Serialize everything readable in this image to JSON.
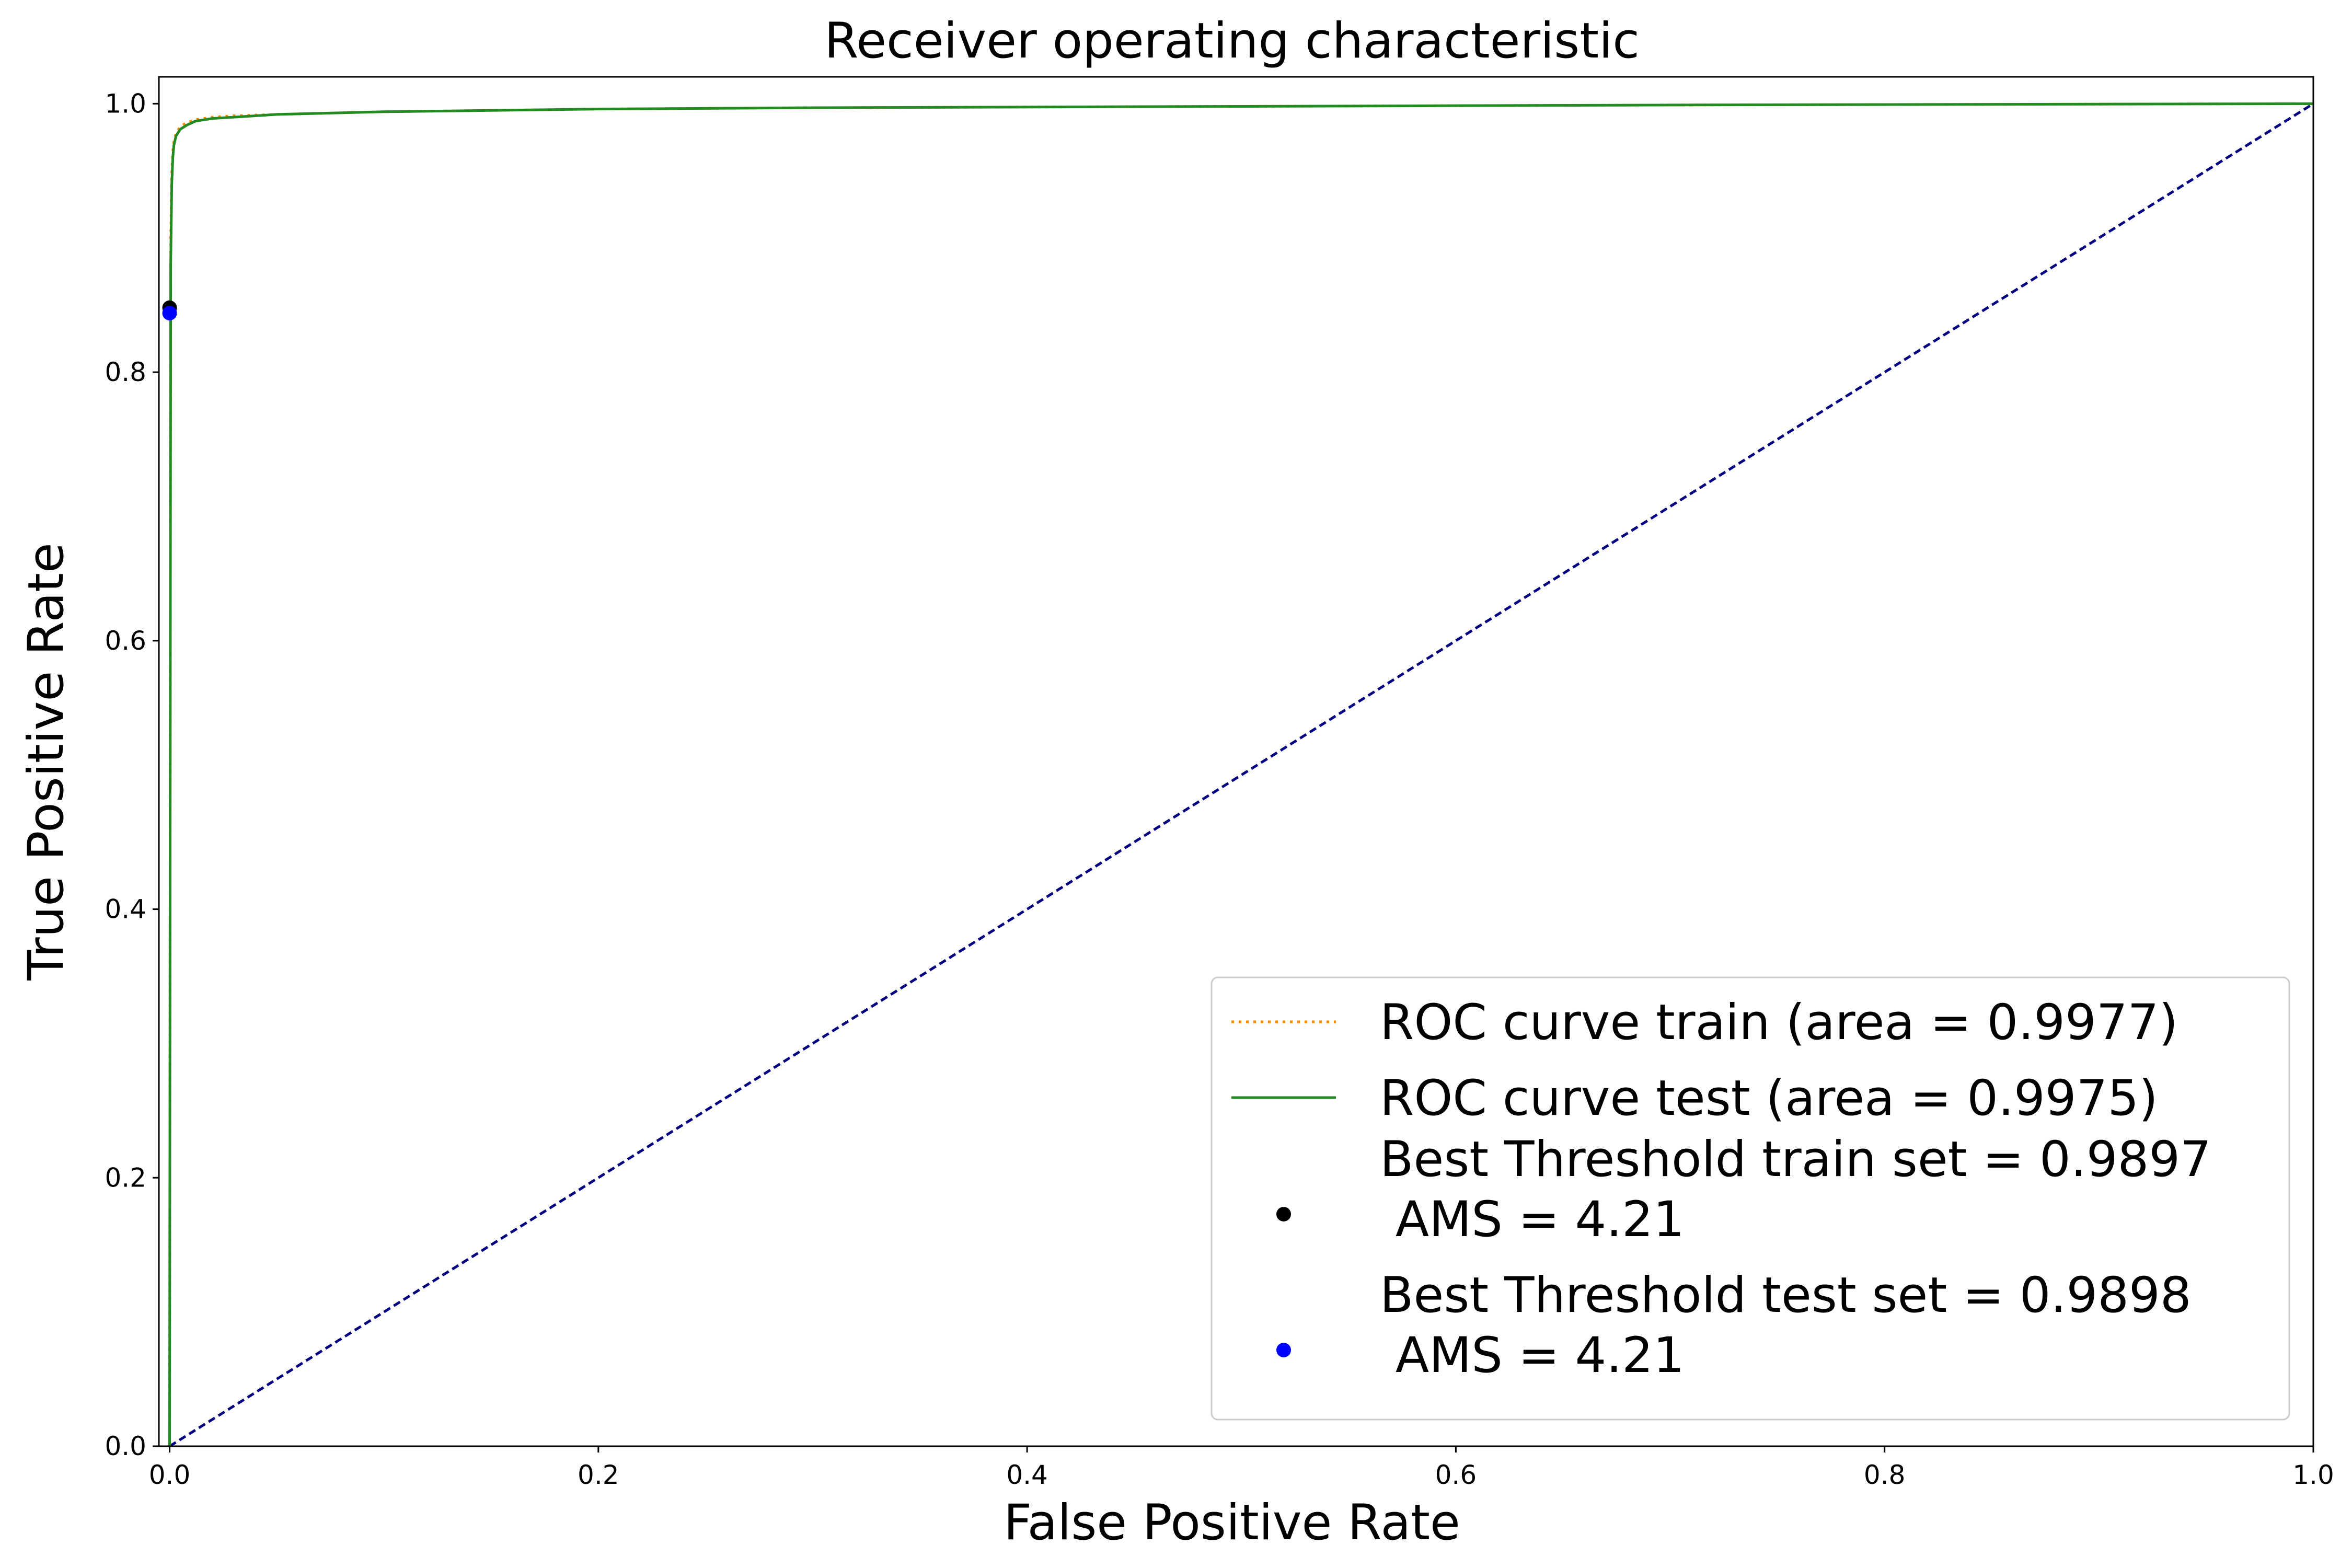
{
  "chart_data": {
    "type": "line",
    "title": "Receiver operating characteristic",
    "xlabel": "False Positive Rate",
    "ylabel": "True Positive Rate",
    "xlim": [
      -0.005,
      1.0
    ],
    "ylim": [
      0.0,
      1.02
    ],
    "xticks": [
      "0.0",
      "0.2",
      "0.4",
      "0.6",
      "0.8",
      "1.0"
    ],
    "yticks": [
      "0.0",
      "0.2",
      "0.4",
      "0.6",
      "0.8",
      "1.0"
    ],
    "xtick_values": [
      0.0,
      0.2,
      0.4,
      0.6,
      0.8,
      1.0
    ],
    "ytick_values": [
      0.0,
      0.2,
      0.4,
      0.6,
      0.8,
      1.0
    ],
    "grid": false,
    "legend_position": "lower-right",
    "series": [
      {
        "name": "ROC curve train (area = 0.9977)",
        "style": "dotted",
        "color": "#ff8c00",
        "x": [
          0.0,
          0.0005,
          0.001,
          0.0015,
          0.002,
          0.003,
          0.005,
          0.008,
          0.012,
          0.02,
          0.03,
          0.05,
          0.1,
          0.2,
          0.3,
          0.5,
          0.7,
          1.0
        ],
        "y": [
          0.0,
          0.9,
          0.95,
          0.965,
          0.972,
          0.978,
          0.983,
          0.986,
          0.988,
          0.99,
          0.991,
          0.992,
          0.994,
          0.996,
          0.997,
          0.998,
          0.999,
          1.0
        ]
      },
      {
        "name": "ROC curve test (area = 0.9975)",
        "style": "solid",
        "color": "#228b22",
        "x": [
          0.0,
          0.0005,
          0.001,
          0.0015,
          0.002,
          0.003,
          0.005,
          0.008,
          0.012,
          0.02,
          0.03,
          0.05,
          0.1,
          0.2,
          0.3,
          0.5,
          0.7,
          1.0
        ],
        "y": [
          0.0,
          0.88,
          0.94,
          0.96,
          0.969,
          0.976,
          0.981,
          0.984,
          0.987,
          0.989,
          0.99,
          0.992,
          0.994,
          0.996,
          0.997,
          0.998,
          0.999,
          1.0
        ]
      },
      {
        "name": "",
        "style": "dashed",
        "color": "#000080",
        "x": [
          0.0,
          1.0
        ],
        "y": [
          0.0,
          1.0
        ]
      }
    ],
    "points": [
      {
        "name": "Best Threshold train set = 0.9897\n AMS = 4.21",
        "x": 0.0,
        "y": 0.848,
        "color": "#000000"
      },
      {
        "name": "Best Threshold test set = 0.9898\n AMS = 4.21",
        "x": 0.0,
        "y": 0.844,
        "color": "#0000ff"
      }
    ]
  }
}
